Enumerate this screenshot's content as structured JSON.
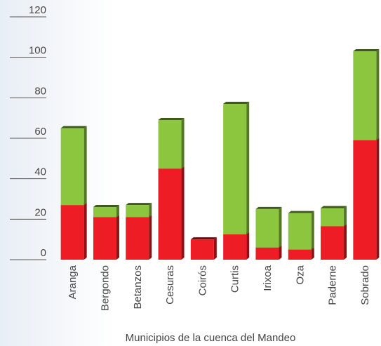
{
  "chart_data": {
    "type": "bar",
    "stacked": true,
    "xlabel": "Municipios de la cuenca del Mandeo",
    "categories": [
      "Aranga",
      "Bergondo",
      "Betanzos",
      "Cesuras",
      "Coirós",
      "Curtis",
      "Irixoa",
      "Oza",
      "Paderne",
      "Sobrado"
    ],
    "series": [
      {
        "color": "#ee1c25",
        "values": [
          27,
          21,
          21,
          45,
          10,
          12.5,
          6,
          5,
          16.5,
          59
        ]
      },
      {
        "color": "#8cc63f",
        "values": [
          38,
          5,
          6,
          24,
          0,
          64.5,
          19,
          18,
          9,
          44
        ]
      }
    ],
    "ylim": [
      0,
      120
    ],
    "yticks": [
      0,
      20,
      40,
      60,
      80,
      100,
      120
    ]
  }
}
